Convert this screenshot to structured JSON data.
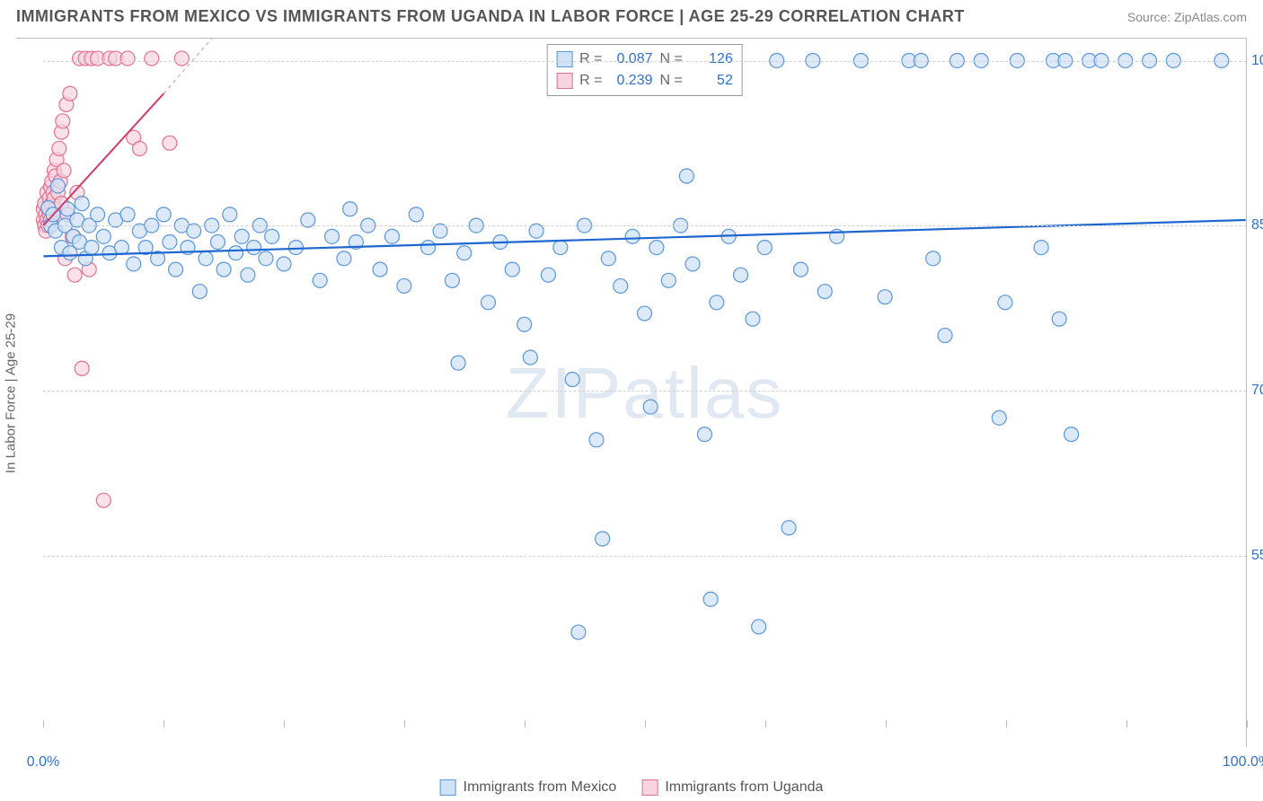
{
  "title": "IMMIGRANTS FROM MEXICO VS IMMIGRANTS FROM UGANDA IN LABOR FORCE | AGE 25-29 CORRELATION CHART",
  "source": "Source: ZipAtlas.com",
  "watermark": "ZIPatlas",
  "chart": {
    "type": "scatter",
    "y_axis_title": "In Labor Force | Age 25-29",
    "xlim": [
      0,
      100
    ],
    "ylim": [
      40,
      102
    ],
    "x_tick_labels": {
      "0": "0.0%",
      "100": "100.0%"
    },
    "x_minor_ticks": [
      0,
      10,
      20,
      30,
      40,
      50,
      60,
      70,
      80,
      90,
      100
    ],
    "y_ticks": [
      55,
      70,
      85,
      100
    ],
    "y_tick_labels": {
      "55": "55.0%",
      "70": "70.0%",
      "85": "85.0%",
      "100": "100.0%"
    },
    "grid_color": "#d8d8d8",
    "background_color": "#ffffff",
    "marker_radius": 8,
    "marker_stroke_width": 1.2,
    "series": [
      {
        "name": "Immigrants from Mexico",
        "fill": "#cfe2f7",
        "stroke": "#5a96db",
        "fill_opacity": 0.75,
        "R": "0.087",
        "N": "126",
        "trend": {
          "x1": 0,
          "y1": 82.2,
          "x2": 100,
          "y2": 85.5,
          "color": "#1e66d0",
          "width": 2.2,
          "dash": ""
        },
        "points": [
          [
            0.4,
            86.6
          ],
          [
            0.6,
            85.0
          ],
          [
            0.8,
            86.0
          ],
          [
            1.0,
            84.5
          ],
          [
            1.2,
            88.6
          ],
          [
            1.5,
            83.0
          ],
          [
            1.8,
            85.0
          ],
          [
            2.0,
            86.5
          ],
          [
            2.2,
            82.5
          ],
          [
            2.5,
            84.0
          ],
          [
            2.8,
            85.5
          ],
          [
            3.0,
            83.5
          ],
          [
            3.2,
            87.0
          ],
          [
            3.5,
            82.0
          ],
          [
            3.8,
            85.0
          ],
          [
            4.0,
            83.0
          ],
          [
            4.5,
            86.0
          ],
          [
            5.0,
            84.0
          ],
          [
            5.5,
            82.5
          ],
          [
            6.0,
            85.5
          ],
          [
            6.5,
            83.0
          ],
          [
            7.0,
            86.0
          ],
          [
            7.5,
            81.5
          ],
          [
            8.0,
            84.5
          ],
          [
            8.5,
            83.0
          ],
          [
            9.0,
            85.0
          ],
          [
            9.5,
            82.0
          ],
          [
            10.0,
            86.0
          ],
          [
            10.5,
            83.5
          ],
          [
            11.0,
            81.0
          ],
          [
            11.5,
            85.0
          ],
          [
            12.0,
            83.0
          ],
          [
            12.5,
            84.5
          ],
          [
            13.0,
            79.0
          ],
          [
            13.5,
            82.0
          ],
          [
            14.0,
            85.0
          ],
          [
            14.5,
            83.5
          ],
          [
            15.0,
            81.0
          ],
          [
            15.5,
            86.0
          ],
          [
            16.0,
            82.5
          ],
          [
            16.5,
            84.0
          ],
          [
            17.0,
            80.5
          ],
          [
            17.5,
            83.0
          ],
          [
            18.0,
            85.0
          ],
          [
            18.5,
            82.0
          ],
          [
            19.0,
            84.0
          ],
          [
            20.0,
            81.5
          ],
          [
            21.0,
            83.0
          ],
          [
            22.0,
            85.5
          ],
          [
            23.0,
            80.0
          ],
          [
            24.0,
            84.0
          ],
          [
            25.0,
            82.0
          ],
          [
            25.5,
            86.5
          ],
          [
            26.0,
            83.5
          ],
          [
            27.0,
            85.0
          ],
          [
            28.0,
            81.0
          ],
          [
            29.0,
            84.0
          ],
          [
            30.0,
            79.5
          ],
          [
            31.0,
            86.0
          ],
          [
            32.0,
            83.0
          ],
          [
            33.0,
            84.5
          ],
          [
            34.0,
            80.0
          ],
          [
            34.5,
            72.5
          ],
          [
            35.0,
            82.5
          ],
          [
            36.0,
            85.0
          ],
          [
            37.0,
            78.0
          ],
          [
            38.0,
            83.5
          ],
          [
            39.0,
            81.0
          ],
          [
            40.0,
            76.0
          ],
          [
            40.5,
            73.0
          ],
          [
            41.0,
            84.5
          ],
          [
            42.0,
            80.5
          ],
          [
            43.0,
            83.0
          ],
          [
            44.0,
            71.0
          ],
          [
            44.5,
            48.0
          ],
          [
            45.0,
            85.0
          ],
          [
            46.0,
            65.5
          ],
          [
            46.5,
            56.5
          ],
          [
            47.0,
            82.0
          ],
          [
            48.0,
            79.5
          ],
          [
            49.0,
            84.0
          ],
          [
            50.0,
            77.0
          ],
          [
            50.5,
            68.5
          ],
          [
            51.0,
            83.0
          ],
          [
            52.0,
            80.0
          ],
          [
            53.0,
            85.0
          ],
          [
            53.5,
            89.5
          ],
          [
            54.0,
            81.5
          ],
          [
            55.0,
            66.0
          ],
          [
            55.5,
            51.0
          ],
          [
            56.0,
            78.0
          ],
          [
            57.0,
            84.0
          ],
          [
            58.0,
            80.5
          ],
          [
            59.0,
            76.5
          ],
          [
            59.5,
            48.5
          ],
          [
            60.0,
            83.0
          ],
          [
            61.0,
            100.0
          ],
          [
            62.0,
            57.5
          ],
          [
            63.0,
            81.0
          ],
          [
            64.0,
            100.0
          ],
          [
            65.0,
            79.0
          ],
          [
            66.0,
            84.0
          ],
          [
            68.0,
            100.0
          ],
          [
            70.0,
            78.5
          ],
          [
            72.0,
            100.0
          ],
          [
            73.0,
            100.0
          ],
          [
            74.0,
            82.0
          ],
          [
            75.0,
            75.0
          ],
          [
            76.0,
            100.0
          ],
          [
            78.0,
            100.0
          ],
          [
            79.5,
            67.5
          ],
          [
            80.0,
            78.0
          ],
          [
            81.0,
            100.0
          ],
          [
            83.0,
            83.0
          ],
          [
            84.0,
            100.0
          ],
          [
            84.5,
            76.5
          ],
          [
            85.0,
            100.0
          ],
          [
            85.5,
            66.0
          ],
          [
            87.0,
            100.0
          ],
          [
            88.0,
            100.0
          ],
          [
            90.0,
            100.0
          ],
          [
            92.0,
            100.0
          ],
          [
            94.0,
            100.0
          ],
          [
            98.0,
            100.0
          ]
        ]
      },
      {
        "name": "Immigrants from Uganda",
        "fill": "#f8d4de",
        "stroke": "#e36f94",
        "fill_opacity": 0.7,
        "R": "0.239",
        "N": "52",
        "trend": {
          "x1": 0,
          "y1": 85.0,
          "x2": 10,
          "y2": 97.0,
          "color": "#d13b6a",
          "width": 2.0,
          "dash": ""
        },
        "trend_ext": {
          "x1": 10,
          "y1": 97.0,
          "x2": 14,
          "y2": 102.0,
          "color": "#d9a3b6",
          "width": 1.2,
          "dash": "4,4"
        },
        "points": [
          [
            0.0,
            85.5
          ],
          [
            0.0,
            86.5
          ],
          [
            0.1,
            85.0
          ],
          [
            0.1,
            87.0
          ],
          [
            0.2,
            84.5
          ],
          [
            0.2,
            86.0
          ],
          [
            0.3,
            85.5
          ],
          [
            0.3,
            88.0
          ],
          [
            0.4,
            86.5
          ],
          [
            0.4,
            85.0
          ],
          [
            0.5,
            87.5
          ],
          [
            0.5,
            86.0
          ],
          [
            0.6,
            88.5
          ],
          [
            0.6,
            85.5
          ],
          [
            0.7,
            87.0
          ],
          [
            0.7,
            89.0
          ],
          [
            0.8,
            86.0
          ],
          [
            0.8,
            88.0
          ],
          [
            0.9,
            90.0
          ],
          [
            0.9,
            87.5
          ],
          [
            1.0,
            89.5
          ],
          [
            1.0,
            86.5
          ],
          [
            1.1,
            91.0
          ],
          [
            1.2,
            88.0
          ],
          [
            1.3,
            92.0
          ],
          [
            1.4,
            89.0
          ],
          [
            1.5,
            93.5
          ],
          [
            1.5,
            87.0
          ],
          [
            1.6,
            94.5
          ],
          [
            1.7,
            90.0
          ],
          [
            1.8,
            82.0
          ],
          [
            1.9,
            96.0
          ],
          [
            2.0,
            86.0
          ],
          [
            2.2,
            97.0
          ],
          [
            2.4,
            84.0
          ],
          [
            2.6,
            80.5
          ],
          [
            2.8,
            88.0
          ],
          [
            3.0,
            100.2
          ],
          [
            3.2,
            72.0
          ],
          [
            3.5,
            100.2
          ],
          [
            3.8,
            81.0
          ],
          [
            4.0,
            100.2
          ],
          [
            4.5,
            100.2
          ],
          [
            5.0,
            60.0
          ],
          [
            5.5,
            100.2
          ],
          [
            6.0,
            100.2
          ],
          [
            7.0,
            100.2
          ],
          [
            7.5,
            93.0
          ],
          [
            8.0,
            92.0
          ],
          [
            9.0,
            100.2
          ],
          [
            10.5,
            92.5
          ],
          [
            11.5,
            100.2
          ]
        ]
      }
    ]
  }
}
